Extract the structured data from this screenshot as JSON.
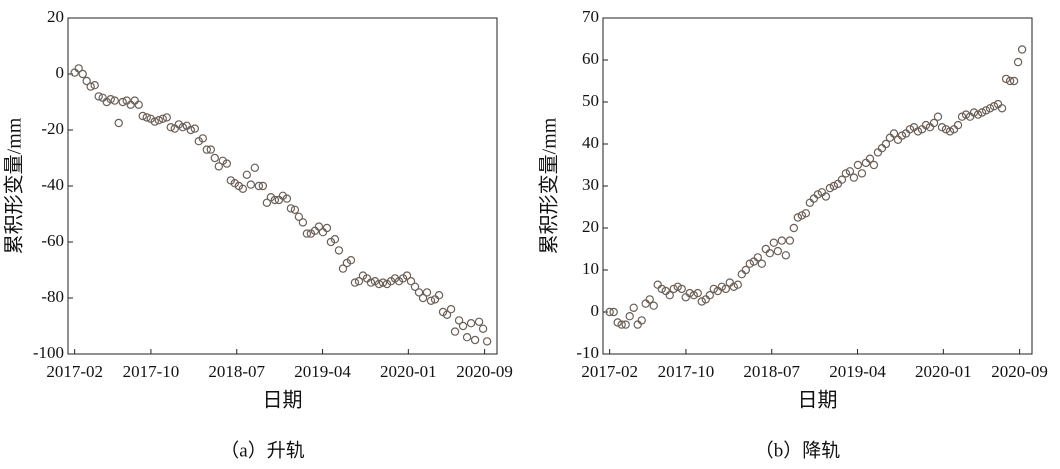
{
  "chart_data": [
    {
      "type": "scatter",
      "caption": "（a）升轨",
      "xlabel": "日期",
      "ylabel": "累积形变量/mm",
      "color": "#6b6058",
      "xlim": [
        -0.7,
        44.3
      ],
      "ylim": [
        -100,
        20
      ],
      "xticks": [
        {
          "value": 0,
          "label": "2017-02"
        },
        {
          "value": 8,
          "label": "2017-10"
        },
        {
          "value": 17,
          "label": "2018-07"
        },
        {
          "value": 26,
          "label": "2019-04"
        },
        {
          "value": 35,
          "label": "2020-01"
        },
        {
          "value": 43,
          "label": "2020-09"
        }
      ],
      "yticks": [
        -100,
        -80,
        -60,
        -40,
        -20,
        0,
        20
      ],
      "x": [
        0,
        0.42,
        0.84,
        1.26,
        1.68,
        2.1,
        2.52,
        2.94,
        3.36,
        3.78,
        4.2,
        4.62,
        5.04,
        5.46,
        5.88,
        6.3,
        6.72,
        7.14,
        7.56,
        7.98,
        8.4,
        8.82,
        9.24,
        9.66,
        10.08,
        10.5,
        10.92,
        11.34,
        11.76,
        12.18,
        12.6,
        13.02,
        13.44,
        13.86,
        14.28,
        14.7,
        15.12,
        15.54,
        15.96,
        16.38,
        16.8,
        17.22,
        17.64,
        18.06,
        18.48,
        18.9,
        19.32,
        19.74,
        20.16,
        20.58,
        21,
        21.42,
        21.84,
        22.26,
        22.68,
        23.1,
        23.52,
        23.94,
        24.36,
        24.78,
        25.2,
        25.62,
        26.04,
        26.46,
        26.88,
        27.3,
        27.72,
        28.14,
        28.56,
        28.98,
        29.4,
        29.82,
        30.24,
        30.66,
        31.08,
        31.5,
        31.92,
        32.34,
        32.76,
        33.18,
        33.6,
        34.02,
        34.44,
        34.86,
        35.28,
        35.7,
        36.12,
        36.54,
        36.96,
        37.38,
        37.8,
        38.22,
        38.64,
        39.06,
        39.48,
        39.9,
        40.32,
        40.74,
        41.16,
        41.58,
        42,
        42.42,
        42.84,
        43.26
      ],
      "values": [
        0.5,
        2,
        0,
        -2.5,
        -4.5,
        -4,
        -8,
        -8.5,
        -10,
        -9,
        -9.5,
        -17.5,
        -10,
        -9.5,
        -11,
        -9.5,
        -11,
        -15,
        -15.5,
        -16,
        -17,
        -16.5,
        -16,
        -15.5,
        -19,
        -19.5,
        -18,
        -19,
        -18.5,
        -20,
        -19.5,
        -24,
        -23,
        -27,
        -27,
        -30,
        -33,
        -31,
        -32,
        -38,
        -39,
        -40,
        -41,
        -36,
        -39.5,
        -33.5,
        -40,
        -40,
        -46,
        -44,
        -45,
        -45,
        -43.5,
        -44.5,
        -48,
        -48.5,
        -51,
        -53,
        -57,
        -57,
        -56,
        -54.5,
        -56.5,
        -55,
        -60,
        -59,
        -63,
        -69.5,
        -67.5,
        -66.5,
        -74.5,
        -74,
        -72,
        -73,
        -74.5,
        -74,
        -75,
        -74.5,
        -75,
        -74,
        -73,
        -74,
        -73,
        -72,
        -74,
        -76,
        -78,
        -80,
        -78,
        -81,
        -80.5,
        -79,
        -85,
        -86,
        -84,
        -92,
        -88,
        -90,
        -94,
        -89,
        -95,
        -88.5,
        -91,
        -95.5
      ]
    },
    {
      "type": "scatter",
      "caption": "（b）降轨",
      "xlabel": "日期",
      "ylabel": "累积形变量/mm",
      "color": "#6b6058",
      "xlim": [
        -0.7,
        44.3
      ],
      "ylim": [
        -10,
        70
      ],
      "xticks": [
        {
          "value": 0,
          "label": "2017-02"
        },
        {
          "value": 8,
          "label": "2017-10"
        },
        {
          "value": 17,
          "label": "2018-07"
        },
        {
          "value": 26,
          "label": "2019-04"
        },
        {
          "value": 35,
          "label": "2020-01"
        },
        {
          "value": 43,
          "label": "2020-09"
        }
      ],
      "yticks": [
        -10,
        0,
        10,
        20,
        30,
        40,
        50,
        60,
        70
      ],
      "x": [
        0,
        0.42,
        0.84,
        1.26,
        1.68,
        2.1,
        2.52,
        2.94,
        3.36,
        3.78,
        4.2,
        4.62,
        5.04,
        5.46,
        5.88,
        6.3,
        6.72,
        7.14,
        7.56,
        7.98,
        8.4,
        8.82,
        9.24,
        9.66,
        10.08,
        10.5,
        10.92,
        11.34,
        11.76,
        12.18,
        12.6,
        13.02,
        13.44,
        13.86,
        14.28,
        14.7,
        15.12,
        15.54,
        15.96,
        16.38,
        16.8,
        17.22,
        17.64,
        18.06,
        18.48,
        18.9,
        19.32,
        19.74,
        20.16,
        20.58,
        21,
        21.42,
        21.84,
        22.26,
        22.68,
        23.1,
        23.52,
        23.94,
        24.36,
        24.78,
        25.2,
        25.62,
        26.04,
        26.46,
        26.88,
        27.3,
        27.72,
        28.14,
        28.56,
        28.98,
        29.4,
        29.82,
        30.24,
        30.66,
        31.08,
        31.5,
        31.92,
        32.34,
        32.76,
        33.18,
        33.6,
        34.02,
        34.44,
        34.86,
        35.28,
        35.7,
        36.12,
        36.54,
        36.96,
        37.38,
        37.8,
        38.22,
        38.64,
        39.06,
        39.48,
        39.9,
        40.32,
        40.74,
        41.16,
        41.58,
        42,
        42.42,
        42.84,
        43.26
      ],
      "values": [
        0,
        0,
        -2.5,
        -3,
        -3,
        -1,
        1,
        -3,
        -2,
        2,
        3,
        1.5,
        6.5,
        5.5,
        5,
        4,
        5.5,
        6,
        5.5,
        3.5,
        4.5,
        4,
        4.5,
        2.5,
        3,
        4,
        5.5,
        5,
        6,
        5.5,
        7,
        6,
        6.5,
        9,
        10,
        11.5,
        12,
        13,
        11.5,
        15,
        14,
        16.5,
        14.5,
        17,
        13.5,
        17,
        20,
        22.5,
        23,
        23.5,
        26,
        27,
        28,
        28.5,
        27.5,
        29.5,
        30,
        30.5,
        31.5,
        33,
        33.5,
        32,
        35,
        33,
        35.5,
        36.5,
        35,
        38,
        39,
        40,
        41.5,
        42.5,
        41,
        42,
        42.5,
        43.5,
        44,
        43,
        43.5,
        44.5,
        44,
        45,
        46.5,
        44,
        43.5,
        43,
        43.5,
        44.5,
        46.5,
        47,
        46.5,
        47.5,
        47,
        47.5,
        48,
        48.5,
        49,
        49.5,
        48.5,
        55.5,
        55,
        55,
        59.5,
        62.5
      ]
    }
  ]
}
